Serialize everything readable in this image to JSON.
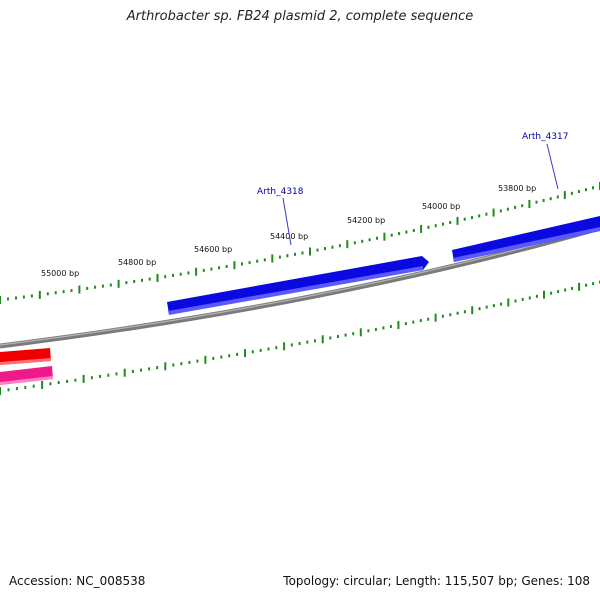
{
  "title": "Arthrobacter sp. FB24 plasmid 2, complete sequence",
  "footer": {
    "accession": "Accession: NC_008538",
    "summary": "Topology: circular; Length: 115,507 bp; Genes: 108"
  },
  "colors": {
    "backbone": "#7a7a7a",
    "tick": "#1f8a1f",
    "gene_forward": "#0a0ae0",
    "gene_reverse_red": "#ee0000",
    "gene_reverse_pink": "#ee1a8a",
    "gene_label": "#0000aa"
  },
  "scale_labels": [
    "53800 bp",
    "54000 bp",
    "54200 bp",
    "54400 bp",
    "54600 bp",
    "54800 bp",
    "55000 bp"
  ],
  "gene_labels": [
    "Arth_4317",
    "Arth_4318"
  ]
}
